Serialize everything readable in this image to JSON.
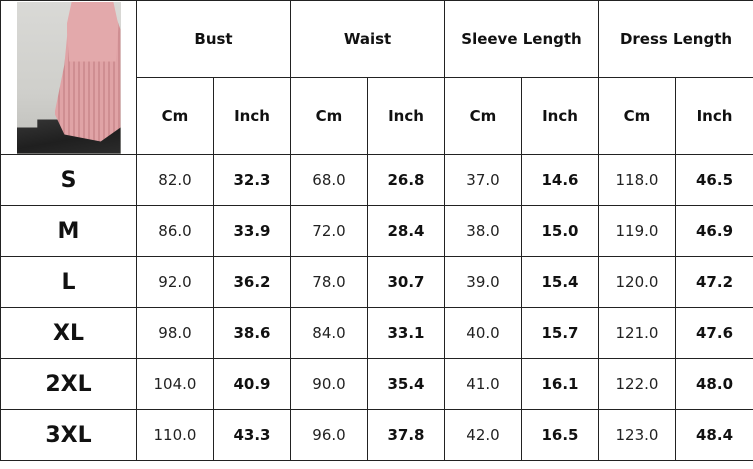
{
  "product_image": {
    "alt": "pink pleated midi dress photo"
  },
  "headers": {
    "groups": [
      "Bust",
      "Waist",
      "Sleeve Length",
      "Dress Length"
    ],
    "units": [
      "Cm",
      "Inch",
      "Cm",
      "Inch",
      "Cm",
      "Inch",
      "Cm",
      "Inch"
    ]
  },
  "rows": [
    {
      "size": "S",
      "values": [
        "82.0",
        "32.3",
        "68.0",
        "26.8",
        "37.0",
        "14.6",
        "118.0",
        "46.5"
      ]
    },
    {
      "size": "M",
      "values": [
        "86.0",
        "33.9",
        "72.0",
        "28.4",
        "38.0",
        "15.0",
        "119.0",
        "46.9"
      ]
    },
    {
      "size": "L",
      "values": [
        "92.0",
        "36.2",
        "78.0",
        "30.7",
        "39.0",
        "15.4",
        "120.0",
        "47.2"
      ]
    },
    {
      "size": "XL",
      "values": [
        "98.0",
        "38.6",
        "84.0",
        "33.1",
        "40.0",
        "15.7",
        "121.0",
        "47.6"
      ]
    },
    {
      "size": "2XL",
      "values": [
        "104.0",
        "40.9",
        "90.0",
        "35.4",
        "41.0",
        "16.1",
        "122.0",
        "48.0"
      ]
    },
    {
      "size": "3XL",
      "values": [
        "110.0",
        "43.3",
        "96.0",
        "37.8",
        "42.0",
        "16.5",
        "123.0",
        "48.4"
      ]
    }
  ]
}
